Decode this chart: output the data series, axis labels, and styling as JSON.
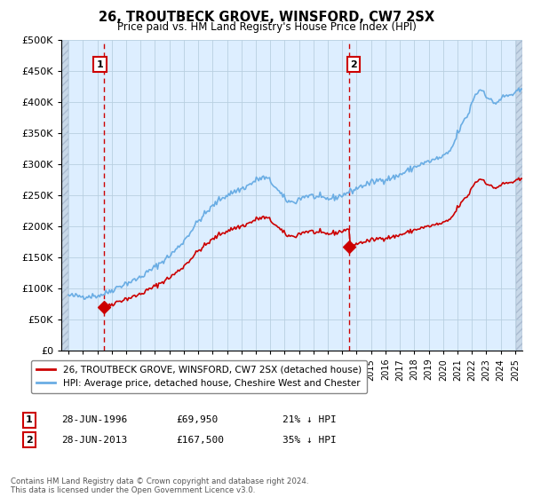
{
  "title": "26, TROUTBECK GROVE, WINSFORD, CW7 2SX",
  "subtitle": "Price paid vs. HM Land Registry's House Price Index (HPI)",
  "legend_line1": "26, TROUTBECK GROVE, WINSFORD, CW7 2SX (detached house)",
  "legend_line2": "HPI: Average price, detached house, Cheshire West and Chester",
  "annotation1": {
    "label": "1",
    "date": "28-JUN-1996",
    "price": "£69,950",
    "pct": "21% ↓ HPI"
  },
  "annotation2": {
    "label": "2",
    "date": "28-JUN-2013",
    "price": "£167,500",
    "pct": "35% ↓ HPI"
  },
  "footer": "Contains HM Land Registry data © Crown copyright and database right 2024.\nThis data is licensed under the Open Government Licence v3.0.",
  "sale1_x": 1996.49,
  "sale1_y": 69950,
  "sale2_x": 2013.49,
  "sale2_y": 167500,
  "vline1_x": 1996.49,
  "vline2_x": 2013.49,
  "hpi_color": "#6aade4",
  "price_color": "#cc0000",
  "vline_color": "#cc0000",
  "plot_bg_color": "#ddeeff",
  "ylim": [
    0,
    500000
  ],
  "xlim": [
    1993.5,
    2025.5
  ],
  "yticks": [
    0,
    50000,
    100000,
    150000,
    200000,
    250000,
    300000,
    350000,
    400000,
    450000,
    500000
  ]
}
